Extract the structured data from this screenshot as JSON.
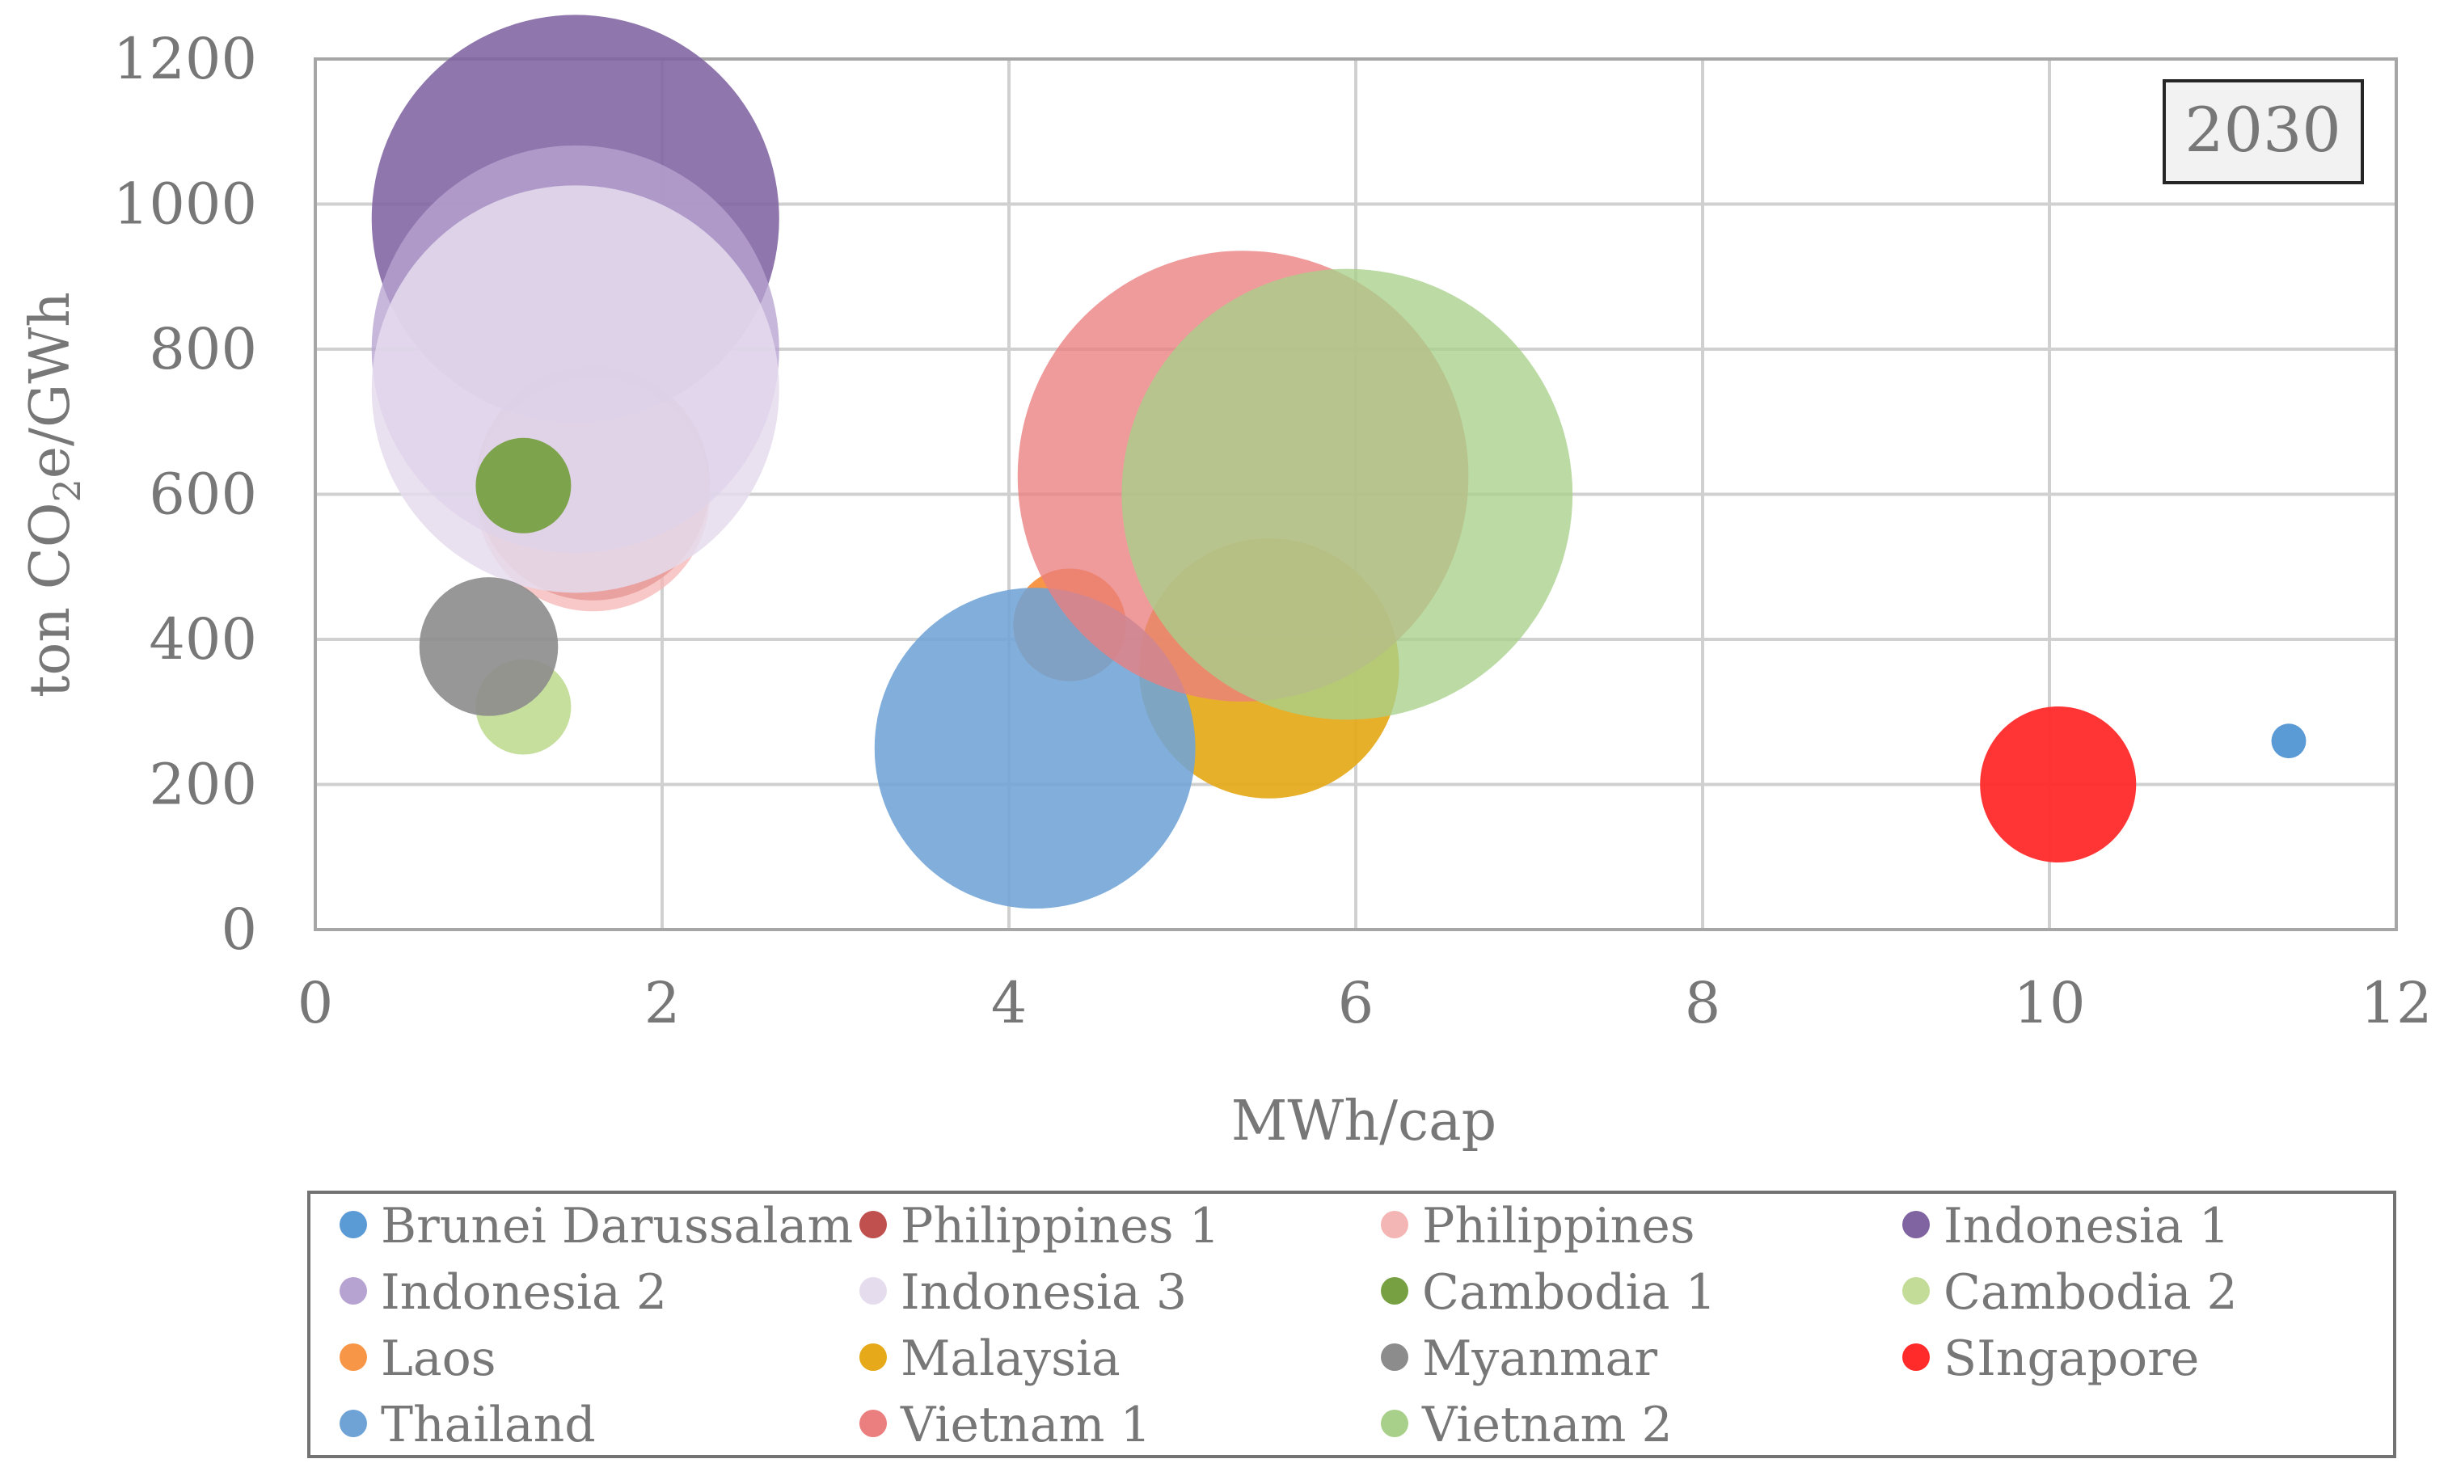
{
  "chart_data": {
    "type": "bubble",
    "annotation": "2030",
    "xlabel": "MWh/cap",
    "ylabel_prefix": "ton CO",
    "ylabel_subscript": "2",
    "ylabel_suffix": "e/GWh",
    "xlim": [
      0,
      12
    ],
    "ylim": [
      0,
      1200
    ],
    "x_ticks": [
      0,
      2,
      4,
      6,
      8,
      10,
      12
    ],
    "y_ticks": [
      0,
      200,
      400,
      600,
      800,
      1000,
      1200
    ],
    "grid": true,
    "legend_position": "bottom",
    "series": [
      {
        "name": "Brunei Darussalam",
        "x": 11.38,
        "y": 260,
        "r": 0.2,
        "color": "#5b9bd5",
        "opacity": 1.0
      },
      {
        "name": "Philippines 1",
        "x": 1.6,
        "y": 615,
        "r": 1.35,
        "color": "#c0504d",
        "opacity": 0.85
      },
      {
        "name": "Philippines",
        "x": 1.6,
        "y": 600,
        "r": 1.35,
        "color": "#f4b6b4",
        "opacity": 0.75
      },
      {
        "name": "Indonesia 1",
        "x": 1.5,
        "y": 980,
        "r": 2.35,
        "color": "#8064a2",
        "opacity": 0.88
      },
      {
        "name": "Indonesia 2",
        "x": 1.5,
        "y": 800,
        "r": 2.35,
        "color": "#b7a3d1",
        "opacity": 0.78
      },
      {
        "name": "Indonesia 3",
        "x": 1.5,
        "y": 745,
        "r": 2.35,
        "color": "#e5dced",
        "opacity": 0.85
      },
      {
        "name": "Cambodia 1",
        "x": 1.2,
        "y": 612,
        "r": 0.55,
        "color": "#77a043",
        "opacity": 0.95
      },
      {
        "name": "Cambodia 2",
        "x": 1.2,
        "y": 307,
        "r": 0.55,
        "color": "#c3dd98",
        "opacity": 0.95
      },
      {
        "name": "Laos",
        "x": 4.35,
        "y": 420,
        "r": 0.65,
        "color": "#f79646",
        "opacity": 1.0
      },
      {
        "name": "Malaysia",
        "x": 5.5,
        "y": 360,
        "r": 1.5,
        "color": "#e5a919",
        "opacity": 0.92
      },
      {
        "name": "Myanmar",
        "x": 1.0,
        "y": 390,
        "r": 0.8,
        "color": "#8c8c8c",
        "opacity": 0.9
      },
      {
        "name": "SIngapore",
        "x": 10.05,
        "y": 200,
        "r": 0.9,
        "color": "#ff2a2a",
        "opacity": 0.95
      },
      {
        "name": "Thailand",
        "x": 4.15,
        "y": 250,
        "r": 1.85,
        "color": "#6fa3d6",
        "opacity": 0.88
      },
      {
        "name": "Vietnam 1",
        "x": 5.35,
        "y": 625,
        "r": 2.6,
        "color": "#eb7f7f",
        "opacity": 0.78
      },
      {
        "name": "Vietnam 2",
        "x": 5.95,
        "y": 600,
        "r": 2.6,
        "color": "#a8d08a",
        "opacity": 0.78
      }
    ]
  }
}
